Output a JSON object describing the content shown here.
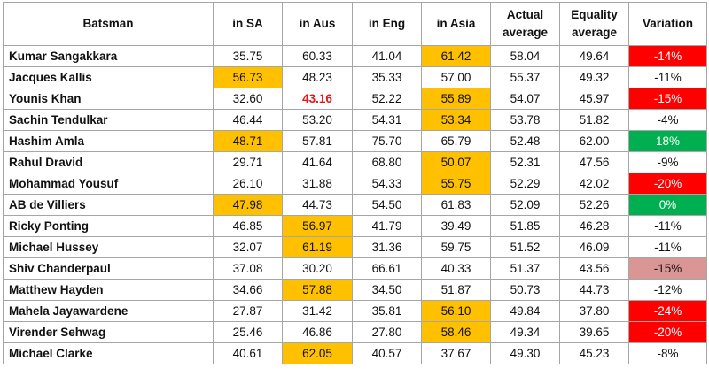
{
  "headers": [
    "Batsman",
    "in SA",
    "in Aus",
    "in Eng",
    "in Asia",
    "Actual average",
    "Equality average",
    "Variation"
  ],
  "colors": {
    "orange": "#ffc000",
    "red": "#ff0000",
    "pink": "#da9694",
    "green": "#00b050",
    "red_text": "#e5161b"
  },
  "rows": [
    {
      "name": "Kumar Sangakkara",
      "sa": "35.75",
      "aus": "60.33",
      "eng": "41.04",
      "asia": "61.42",
      "actual": "58.04",
      "equality": "49.64",
      "variation": "-14%"
    },
    {
      "name": "Jacques Kallis",
      "sa": "56.73",
      "aus": "48.23",
      "eng": "35.33",
      "asia": "57.00",
      "actual": "55.37",
      "equality": "49.32",
      "variation": "-11%"
    },
    {
      "name": "Younis Khan",
      "sa": "32.60",
      "aus": "43.16",
      "eng": "52.22",
      "asia": "55.89",
      "actual": "54.07",
      "equality": "45.97",
      "variation": "-15%"
    },
    {
      "name": "Sachin Tendulkar",
      "sa": "46.44",
      "aus": "53.20",
      "eng": "54.31",
      "asia": "53.34",
      "actual": "53.78",
      "equality": "51.82",
      "variation": "-4%"
    },
    {
      "name": "Hashim Amla",
      "sa": "48.71",
      "aus": "57.81",
      "eng": "75.70",
      "asia": "65.79",
      "actual": "52.48",
      "equality": "62.00",
      "variation": "18%"
    },
    {
      "name": "Rahul Dravid",
      "sa": "29.71",
      "aus": "41.64",
      "eng": "68.80",
      "asia": "50.07",
      "actual": "52.31",
      "equality": "47.56",
      "variation": "-9%"
    },
    {
      "name": "Mohammad Yousuf",
      "sa": "26.10",
      "aus": "31.88",
      "eng": "54.33",
      "asia": "55.75",
      "actual": "52.29",
      "equality": "42.02",
      "variation": "-20%"
    },
    {
      "name": "AB de Villiers",
      "sa": "47.98",
      "aus": "44.73",
      "eng": "54.50",
      "asia": "61.83",
      "actual": "52.09",
      "equality": "52.26",
      "variation": "0%"
    },
    {
      "name": "Ricky Ponting",
      "sa": "46.85",
      "aus": "56.97",
      "eng": "41.79",
      "asia": "39.49",
      "actual": "51.85",
      "equality": "46.28",
      "variation": "-11%"
    },
    {
      "name": "Michael Hussey",
      "sa": "32.07",
      "aus": "61.19",
      "eng": "31.36",
      "asia": "59.75",
      "actual": "51.52",
      "equality": "46.09",
      "variation": "-11%"
    },
    {
      "name": "Shiv Chanderpaul",
      "sa": "37.08",
      "aus": "30.20",
      "eng": "66.61",
      "asia": "40.33",
      "actual": "51.37",
      "equality": "43.56",
      "variation": "-15%"
    },
    {
      "name": "Matthew Hayden",
      "sa": "34.66",
      "aus": "57.88",
      "eng": "34.50",
      "asia": "51.87",
      "actual": "50.73",
      "equality": "44.73",
      "variation": "-12%"
    },
    {
      "name": "Mahela Jayawardene",
      "sa": "27.87",
      "aus": "31.42",
      "eng": "35.81",
      "asia": "56.10",
      "actual": "49.84",
      "equality": "37.80",
      "variation": "-24%"
    },
    {
      "name": "Virender Sehwag",
      "sa": "25.46",
      "aus": "46.86",
      "eng": "27.80",
      "asia": "58.46",
      "actual": "49.34",
      "equality": "39.65",
      "variation": "-20%"
    },
    {
      "name": "Michael Clarke",
      "sa": "40.61",
      "aus": "62.05",
      "eng": "40.57",
      "asia": "37.67",
      "actual": "49.30",
      "equality": "45.23",
      "variation": "-8%"
    }
  ]
}
